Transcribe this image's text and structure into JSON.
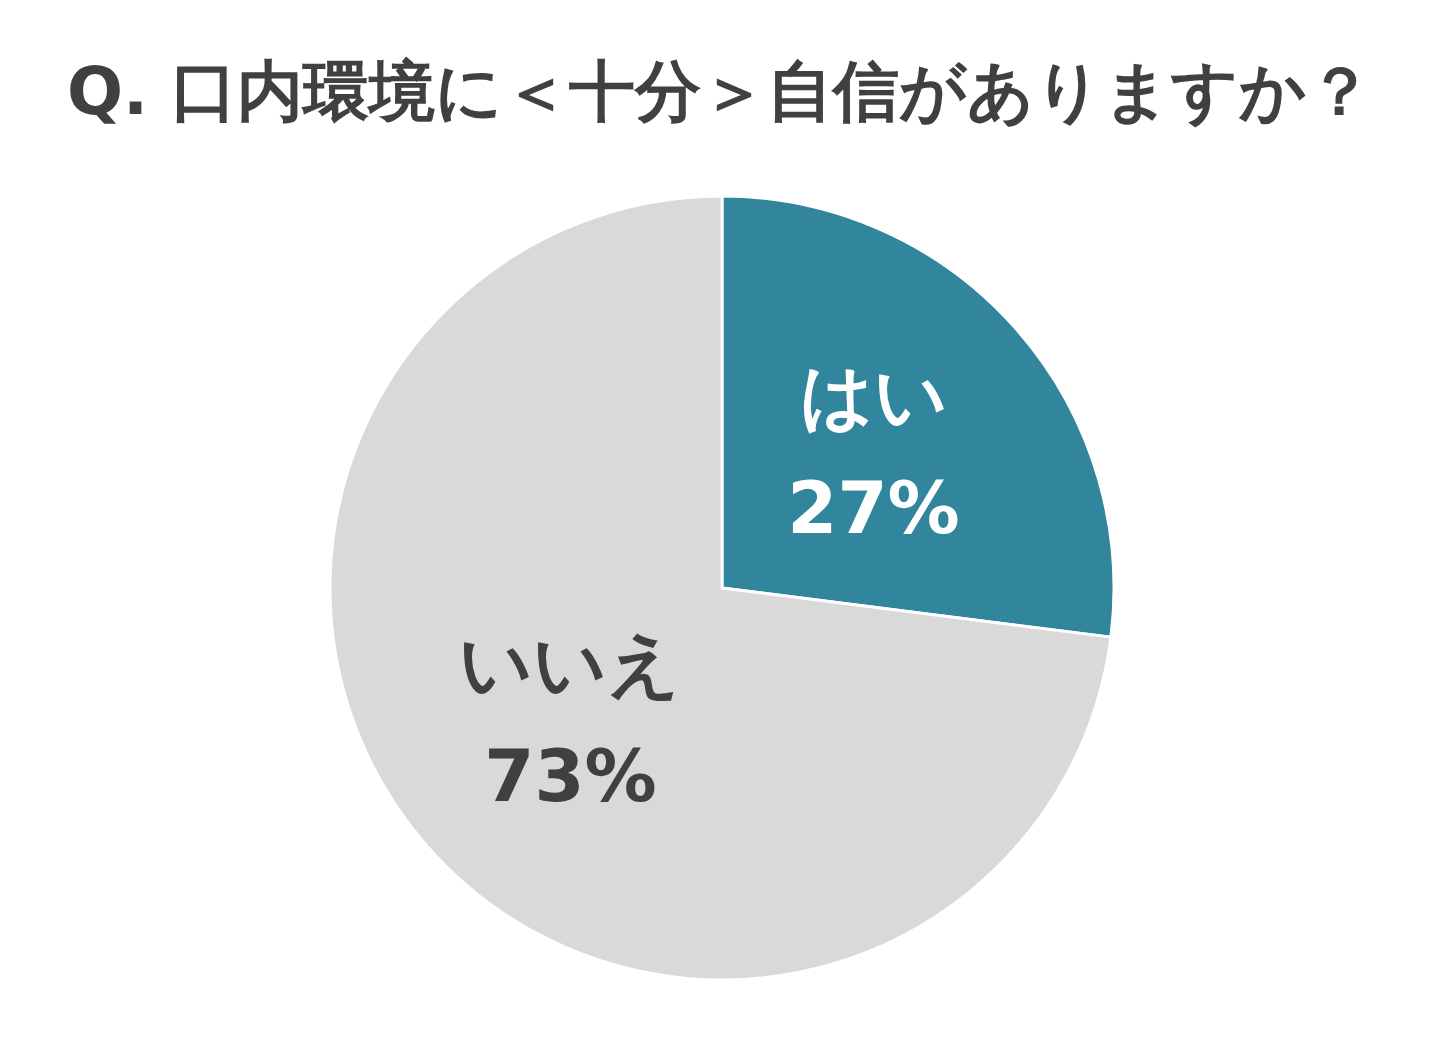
{
  "chart_data": {
    "type": "pie",
    "title": "Q. 口内環境に＜十分＞自信がありますか？",
    "categories": [
      "はい",
      "いいえ"
    ],
    "values": [
      27,
      73
    ],
    "colors": [
      "#31859c",
      "#d9d9d9"
    ],
    "value_labels": [
      "27%",
      "73%"
    ],
    "legend": false
  }
}
